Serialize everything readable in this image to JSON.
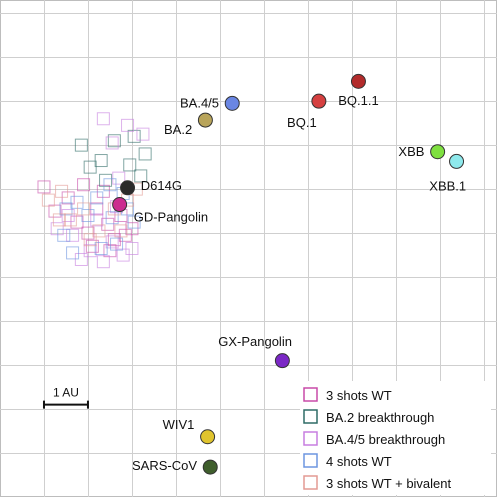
{
  "chart_data": {
    "type": "scatter",
    "title": "",
    "xlabel": "",
    "ylabel": "",
    "grid": true,
    "grid_units": 1,
    "xlim": [
      0,
      11.3
    ],
    "ylim": [
      0,
      11.3
    ],
    "scale_bar": {
      "label": "1 AU",
      "length": 1,
      "x": 1.0,
      "y": 2.1
    },
    "antigens": [
      {
        "name": "BQ.1.1",
        "x": 8.15,
        "y": 9.45,
        "color": "#b22b2b",
        "label_anchor": "middle",
        "label_dx": 0,
        "label_dy": -0.42
      },
      {
        "name": "BQ.1",
        "x": 7.25,
        "y": 9.0,
        "color": "#d54040",
        "label_anchor": "end",
        "label_dx": -0.05,
        "label_dy": -0.47
      },
      {
        "name": "BA.4/5",
        "x": 5.28,
        "y": 8.95,
        "color": "#6a86e3",
        "label_anchor": "end",
        "label_dx": -0.3,
        "label_dy": 0.02
      },
      {
        "name": "BA.2",
        "x": 4.67,
        "y": 8.57,
        "color": "#b8a45a",
        "label_anchor": "end",
        "label_dx": -0.3,
        "label_dy": -0.2
      },
      {
        "name": "XBB",
        "x": 9.95,
        "y": 7.85,
        "color": "#7fe040",
        "label_anchor": "end",
        "label_dx": -0.3,
        "label_dy": 0.02
      },
      {
        "name": "XBB.1",
        "x": 10.38,
        "y": 7.63,
        "color": "#8ee9ec",
        "label_anchor": "middle",
        "label_dx": -0.2,
        "label_dy": -0.55
      },
      {
        "name": "D614G",
        "x": 2.9,
        "y": 7.03,
        "color": "#2a2a2a",
        "label_anchor": "start",
        "label_dx": 0.3,
        "label_dy": 0.06
      },
      {
        "name": "GD-Pangolin",
        "x": 2.72,
        "y": 6.65,
        "color": "#cc2b8f",
        "label_anchor": "start",
        "label_dx": 0.32,
        "label_dy": -0.27
      },
      {
        "name": "GX-Pangolin",
        "x": 6.42,
        "y": 3.1,
        "color": "#7b28c6",
        "label_anchor": "middle",
        "label_dx": -0.62,
        "label_dy": 0.45
      },
      {
        "name": "WIV1",
        "x": 4.72,
        "y": 1.37,
        "color": "#e0c42e",
        "label_anchor": "end",
        "label_dx": -0.3,
        "label_dy": 0.29
      },
      {
        "name": "SARS-CoV",
        "x": 4.78,
        "y": 0.68,
        "color": "#3f5e2c",
        "label_anchor": "end",
        "label_dx": -0.3,
        "label_dy": 0.05
      }
    ],
    "serum_groups": [
      {
        "name": "3 shots WT",
        "color": "#c84aa8"
      },
      {
        "name": "BA.2 breakthrough",
        "color": "#2e6b66"
      },
      {
        "name": "BA.4/5 breakthrough",
        "color": "#c77ee0"
      },
      {
        "name": "4 shots WT",
        "color": "#6d95e0"
      },
      {
        "name": "3 shots WT + bivalent",
        "color": "#e39a93"
      }
    ],
    "sera": [
      {
        "group": 0,
        "points": [
          [
            1.0,
            7.05
          ],
          [
            1.25,
            6.5
          ],
          [
            1.55,
            6.8
          ],
          [
            1.75,
            6.25
          ],
          [
            2.0,
            6.0
          ],
          [
            2.2,
            6.55
          ],
          [
            2.45,
            6.2
          ],
          [
            2.6,
            5.85
          ],
          [
            2.75,
            6.4
          ],
          [
            3.0,
            6.1
          ],
          [
            1.9,
            7.1
          ],
          [
            2.35,
            6.95
          ],
          [
            2.85,
            5.95
          ],
          [
            2.1,
            5.7
          ],
          [
            2.5,
            5.6
          ]
        ]
      },
      {
        "group": 1,
        "points": [
          [
            1.85,
            8.0
          ],
          [
            2.3,
            7.65
          ],
          [
            2.95,
            7.55
          ],
          [
            3.3,
            7.8
          ],
          [
            2.6,
            8.1
          ],
          [
            3.05,
            8.2
          ],
          [
            2.4,
            7.2
          ],
          [
            3.2,
            7.3
          ],
          [
            2.05,
            7.5
          ]
        ]
      },
      {
        "group": 2,
        "points": [
          [
            2.35,
            8.6
          ],
          [
            2.9,
            8.45
          ],
          [
            2.55,
            8.05
          ],
          [
            3.25,
            8.25
          ],
          [
            2.7,
            7.25
          ],
          [
            1.3,
            6.1
          ],
          [
            1.65,
            5.95
          ],
          [
            2.05,
            5.6
          ],
          [
            2.35,
            5.35
          ],
          [
            2.8,
            5.5
          ],
          [
            3.0,
            5.65
          ],
          [
            2.55,
            5.8
          ],
          [
            1.85,
            5.4
          ],
          [
            1.55,
            6.4
          ],
          [
            2.2,
            6.3
          ],
          [
            2.65,
            6.6
          ]
        ]
      },
      {
        "group": 3,
        "points": [
          [
            1.5,
            6.55
          ],
          [
            1.75,
            6.7
          ],
          [
            2.0,
            6.4
          ],
          [
            2.2,
            6.8
          ],
          [
            2.55,
            6.35
          ],
          [
            2.8,
            6.9
          ],
          [
            1.45,
            5.95
          ],
          [
            2.3,
            5.65
          ],
          [
            2.65,
            5.75
          ],
          [
            1.65,
            5.55
          ],
          [
            2.5,
            7.1
          ],
          [
            2.9,
            6.55
          ],
          [
            3.05,
            6.25
          ]
        ]
      },
      {
        "group": 4,
        "points": [
          [
            1.1,
            6.75
          ],
          [
            1.4,
            6.95
          ],
          [
            1.6,
            6.3
          ],
          [
            2.25,
            6.05
          ],
          [
            2.9,
            6.75
          ],
          [
            3.1,
            7.0
          ],
          [
            2.6,
            6.55
          ],
          [
            1.9,
            6.55
          ],
          [
            2.05,
            5.85
          ],
          [
            2.75,
            6.05
          ],
          [
            1.35,
            6.3
          ]
        ]
      }
    ]
  }
}
